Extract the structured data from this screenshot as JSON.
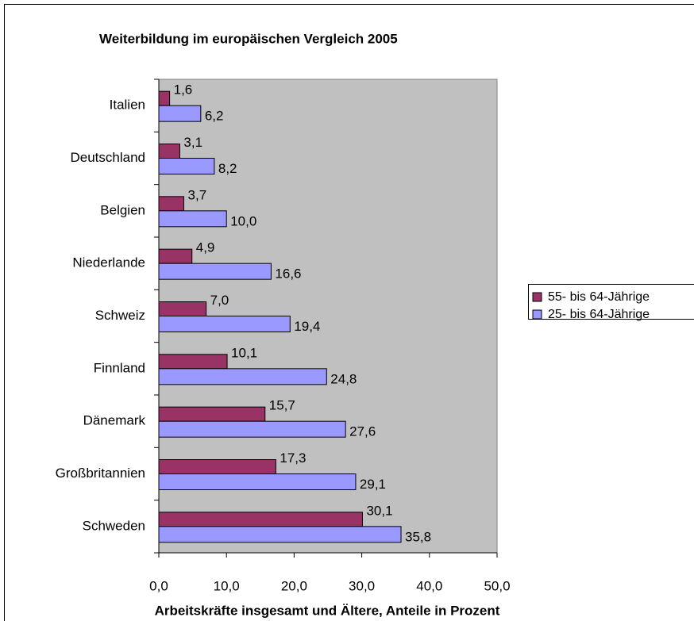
{
  "chart_data": {
    "type": "bar",
    "orientation": "horizontal",
    "title": "Weiterbildung im europäischen Vergleich 2005",
    "x_label": "Arbeitskräfte insgesamt und Ältere, Anteile in Prozent",
    "categories": [
      "Italien",
      "Deutschland",
      "Belgien",
      "Niederlande",
      "Schweiz",
      "Finnland",
      "Dänemark",
      "Großbritannien",
      "Schweden"
    ],
    "series": [
      {
        "name": "55- bis 64-Jährige",
        "color": "#993366",
        "values": [
          1.6,
          3.1,
          3.7,
          4.9,
          7.0,
          10.1,
          15.7,
          17.3,
          30.1
        ],
        "value_labels": [
          "1,6",
          "3,1",
          "3,7",
          "4,9",
          "7,0",
          "10,1",
          "15,7",
          "17,3",
          "30,1"
        ]
      },
      {
        "name": "25- bis 64-Jährige",
        "color": "#9999ff",
        "values": [
          6.2,
          8.2,
          10.0,
          16.6,
          19.4,
          24.8,
          27.6,
          29.1,
          35.8
        ],
        "value_labels": [
          "6,2",
          "8,2",
          "10,0",
          "16,6",
          "19,4",
          "24,8",
          "27,6",
          "29,1",
          "35,8"
        ]
      }
    ],
    "xlim": [
      0,
      50
    ],
    "xticks": [
      {
        "value": 0,
        "label": "0,0"
      },
      {
        "value": 10,
        "label": "10,0"
      },
      {
        "value": 20,
        "label": "20,0"
      },
      {
        "value": 30,
        "label": "30,0"
      },
      {
        "value": 40,
        "label": "40,0"
      },
      {
        "value": 50,
        "label": "50,0"
      }
    ],
    "legend": "right",
    "plot_background": "#c0c0c0"
  }
}
